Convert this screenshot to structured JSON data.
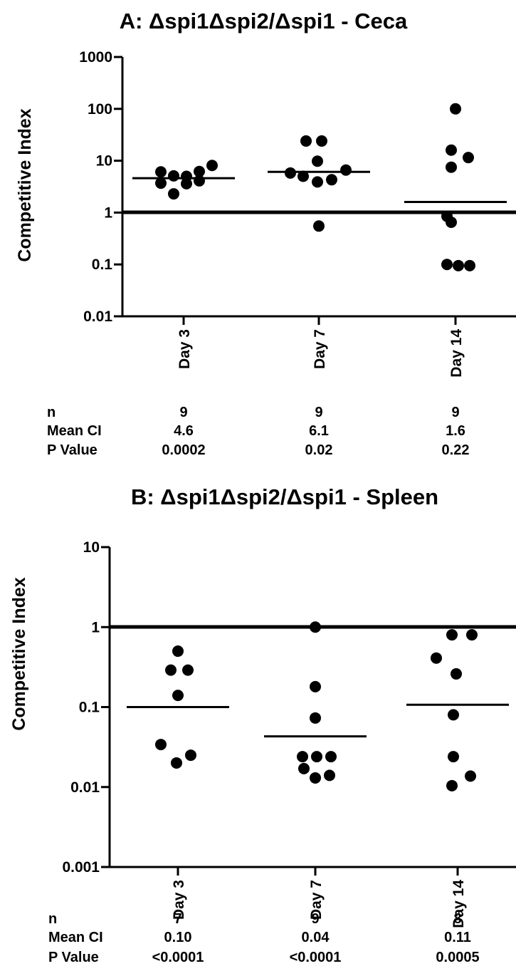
{
  "chart_data": [
    {
      "type": "scatter",
      "title": "A: Δspi1Δspi2/Δspi1 - Ceca",
      "ylabel": "Competitive Index",
      "xlabel": "",
      "yscale": "log",
      "ylim": [
        0.01,
        1000
      ],
      "yticks": [
        "0.01",
        "0.1",
        "1",
        "10",
        "100",
        "1000"
      ],
      "reference_line": 1,
      "categories": [
        "Day 3",
        "Day 7",
        "Day 14"
      ],
      "points": [
        [
          6.1,
          3.7,
          5.1,
          2.3,
          5.0,
          3.6,
          6.2,
          4.1,
          8.1
        ],
        [
          24,
          24,
          5.8,
          9.8,
          5.0,
          3.9,
          4.3,
          6.6,
          0.55
        ],
        [
          100,
          16,
          11.5,
          7.5,
          0.85,
          0.65,
          0.1,
          0.095,
          0.095
        ]
      ],
      "means": [
        4.6,
        6.1,
        1.6
      ],
      "stats": {
        "labels": [
          "n",
          "Mean CI",
          "P Value"
        ],
        "rows": [
          [
            "9",
            "9",
            "9"
          ],
          [
            "4.6",
            "6.1",
            "1.6"
          ],
          [
            "0.0002",
            "0.02",
            "0.22"
          ]
        ]
      }
    },
    {
      "type": "scatter",
      "title": "B: Δspi1Δspi2/Δspi1 - Spleen",
      "ylabel": "Competitive Index",
      "xlabel": "",
      "yscale": "log",
      "ylim": [
        0.001,
        10
      ],
      "yticks": [
        "0.001",
        "0.01",
        "0.1",
        "1",
        "10"
      ],
      "reference_line": 1,
      "categories": [
        "Day 3",
        "Day 7",
        "Day 14"
      ],
      "points": [
        [
          0.5,
          0.29,
          0.29,
          0.14,
          0.034,
          0.02,
          0.025
        ],
        [
          1.0,
          0.18,
          0.073,
          0.024,
          0.024,
          0.024,
          0.017,
          0.013,
          0.014
        ],
        [
          0.8,
          0.8,
          0.41,
          0.26,
          0.08,
          0.024,
          0.0104,
          0.0137
        ]
      ],
      "means": [
        0.1,
        0.043,
        0.107
      ],
      "stats": {
        "labels": [
          "n",
          "Mean CI",
          "P Value"
        ],
        "rows": [
          [
            "7",
            "9",
            "8"
          ],
          [
            "0.10",
            "0.04",
            "0.11"
          ],
          [
            "<0.0001",
            "<0.0001",
            "0.0005"
          ]
        ]
      }
    }
  ]
}
